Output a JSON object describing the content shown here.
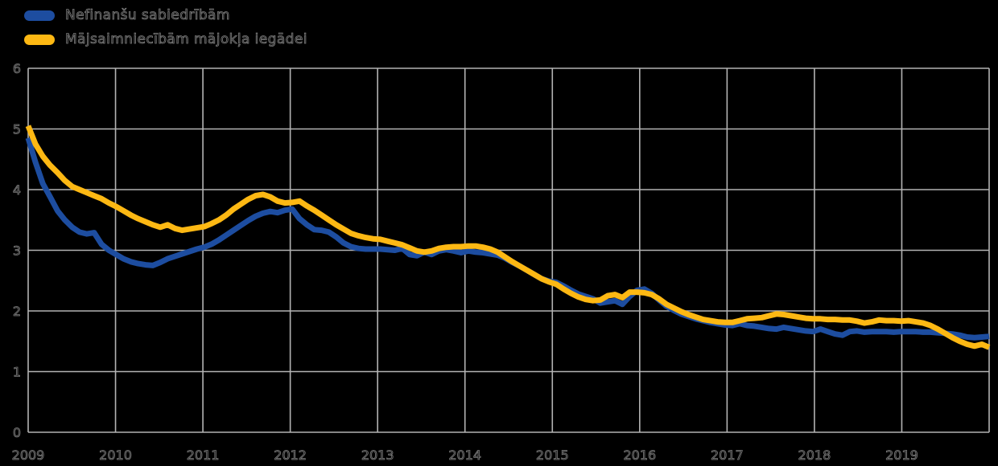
{
  "legend": {
    "position": "top-left"
  },
  "chart_data": {
    "type": "line",
    "title": "",
    "xlabel": "",
    "ylabel": "",
    "frequency": "monthly",
    "x_start": "2009-01",
    "x_end": "2019-12",
    "x_tick_labels": [
      "2009",
      "2010",
      "2011",
      "2012",
      "2013",
      "2014",
      "2015",
      "2016",
      "2017",
      "2018",
      "2019"
    ],
    "y_tick_labels": [
      "0",
      "1",
      "2",
      "3",
      "4",
      "5",
      "6"
    ],
    "ylim": [
      0,
      6
    ],
    "grid": true,
    "legend_position": "top-left",
    "background_color": "#000000",
    "gridline_color": "#b3b3b3",
    "series": [
      {
        "name": "Nefinanšu sabiedrībām",
        "color": "#1d4da0",
        "values": [
          4.85,
          4.45,
          4.1,
          3.88,
          3.65,
          3.5,
          3.38,
          3.3,
          3.27,
          3.29,
          3.1,
          3.0,
          2.93,
          2.86,
          2.81,
          2.78,
          2.76,
          2.75,
          2.8,
          2.86,
          2.9,
          2.94,
          2.98,
          3.02,
          3.05,
          3.1,
          3.17,
          3.25,
          3.33,
          3.41,
          3.49,
          3.56,
          3.61,
          3.64,
          3.62,
          3.66,
          3.68,
          3.52,
          3.42,
          3.34,
          3.33,
          3.3,
          3.22,
          3.12,
          3.06,
          3.03,
          3.02,
          3.02,
          3.02,
          3.01,
          3.0,
          3.03,
          2.93,
          2.91,
          2.97,
          2.93,
          2.99,
          3.01,
          2.99,
          2.96,
          2.99,
          2.97,
          2.96,
          2.94,
          2.92,
          2.87,
          2.8,
          2.74,
          2.67,
          2.6,
          2.53,
          2.49,
          2.47,
          2.41,
          2.34,
          2.28,
          2.24,
          2.2,
          2.13,
          2.15,
          2.17,
          2.11,
          2.24,
          2.34,
          2.36,
          2.29,
          2.18,
          2.08,
          2.01,
          1.95,
          1.91,
          1.87,
          1.84,
          1.81,
          1.79,
          1.77,
          1.76,
          1.79,
          1.76,
          1.75,
          1.73,
          1.71,
          1.7,
          1.73,
          1.71,
          1.69,
          1.67,
          1.66,
          1.7,
          1.66,
          1.62,
          1.6,
          1.66,
          1.67,
          1.65,
          1.66,
          1.66,
          1.66,
          1.65,
          1.66,
          1.66,
          1.66,
          1.65,
          1.65,
          1.64,
          1.63,
          1.62,
          1.6,
          1.57,
          1.56,
          1.57,
          1.58
        ]
      },
      {
        "name": "Mājsaimniecībām mājokļa iegādei",
        "color": "#fdb813",
        "values": [
          5.05,
          4.75,
          4.55,
          4.4,
          4.28,
          4.15,
          4.05,
          4.0,
          3.95,
          3.9,
          3.85,
          3.78,
          3.72,
          3.65,
          3.58,
          3.52,
          3.47,
          3.42,
          3.38,
          3.42,
          3.36,
          3.33,
          3.35,
          3.37,
          3.39,
          3.44,
          3.5,
          3.58,
          3.68,
          3.76,
          3.84,
          3.9,
          3.92,
          3.88,
          3.81,
          3.78,
          3.79,
          3.81,
          3.73,
          3.66,
          3.58,
          3.5,
          3.42,
          3.35,
          3.28,
          3.24,
          3.21,
          3.19,
          3.18,
          3.15,
          3.12,
          3.09,
          3.04,
          2.99,
          2.97,
          2.99,
          3.03,
          3.05,
          3.06,
          3.06,
          3.07,
          3.07,
          3.05,
          3.02,
          2.97,
          2.89,
          2.81,
          2.74,
          2.67,
          2.6,
          2.53,
          2.48,
          2.44,
          2.36,
          2.29,
          2.23,
          2.19,
          2.17,
          2.18,
          2.25,
          2.27,
          2.22,
          2.31,
          2.31,
          2.3,
          2.27,
          2.2,
          2.11,
          2.05,
          1.99,
          1.94,
          1.9,
          1.86,
          1.84,
          1.82,
          1.81,
          1.81,
          1.84,
          1.87,
          1.88,
          1.89,
          1.92,
          1.95,
          1.94,
          1.92,
          1.9,
          1.88,
          1.87,
          1.87,
          1.86,
          1.86,
          1.85,
          1.85,
          1.83,
          1.8,
          1.82,
          1.85,
          1.84,
          1.84,
          1.83,
          1.84,
          1.82,
          1.8,
          1.76,
          1.7,
          1.63,
          1.56,
          1.5,
          1.45,
          1.42,
          1.45,
          1.4
        ]
      }
    ]
  }
}
